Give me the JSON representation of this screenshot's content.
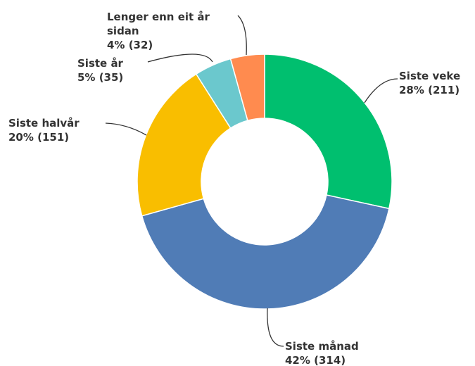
{
  "chart_data": {
    "type": "donut",
    "categories": [
      "Siste veke",
      "Siste månad",
      "Siste halvår",
      "Siste år",
      "Lenger enn eit år sidan"
    ],
    "values": [
      211,
      314,
      151,
      35,
      32
    ],
    "value_labels": [
      "28% (211)",
      "42% (314)",
      "20% (151)",
      "5% (35)",
      "4% (32)"
    ],
    "colors": [
      "#00bf6f",
      "#507cb6",
      "#f9be00",
      "#6bc8cd",
      "#ff8b4f"
    ]
  }
}
